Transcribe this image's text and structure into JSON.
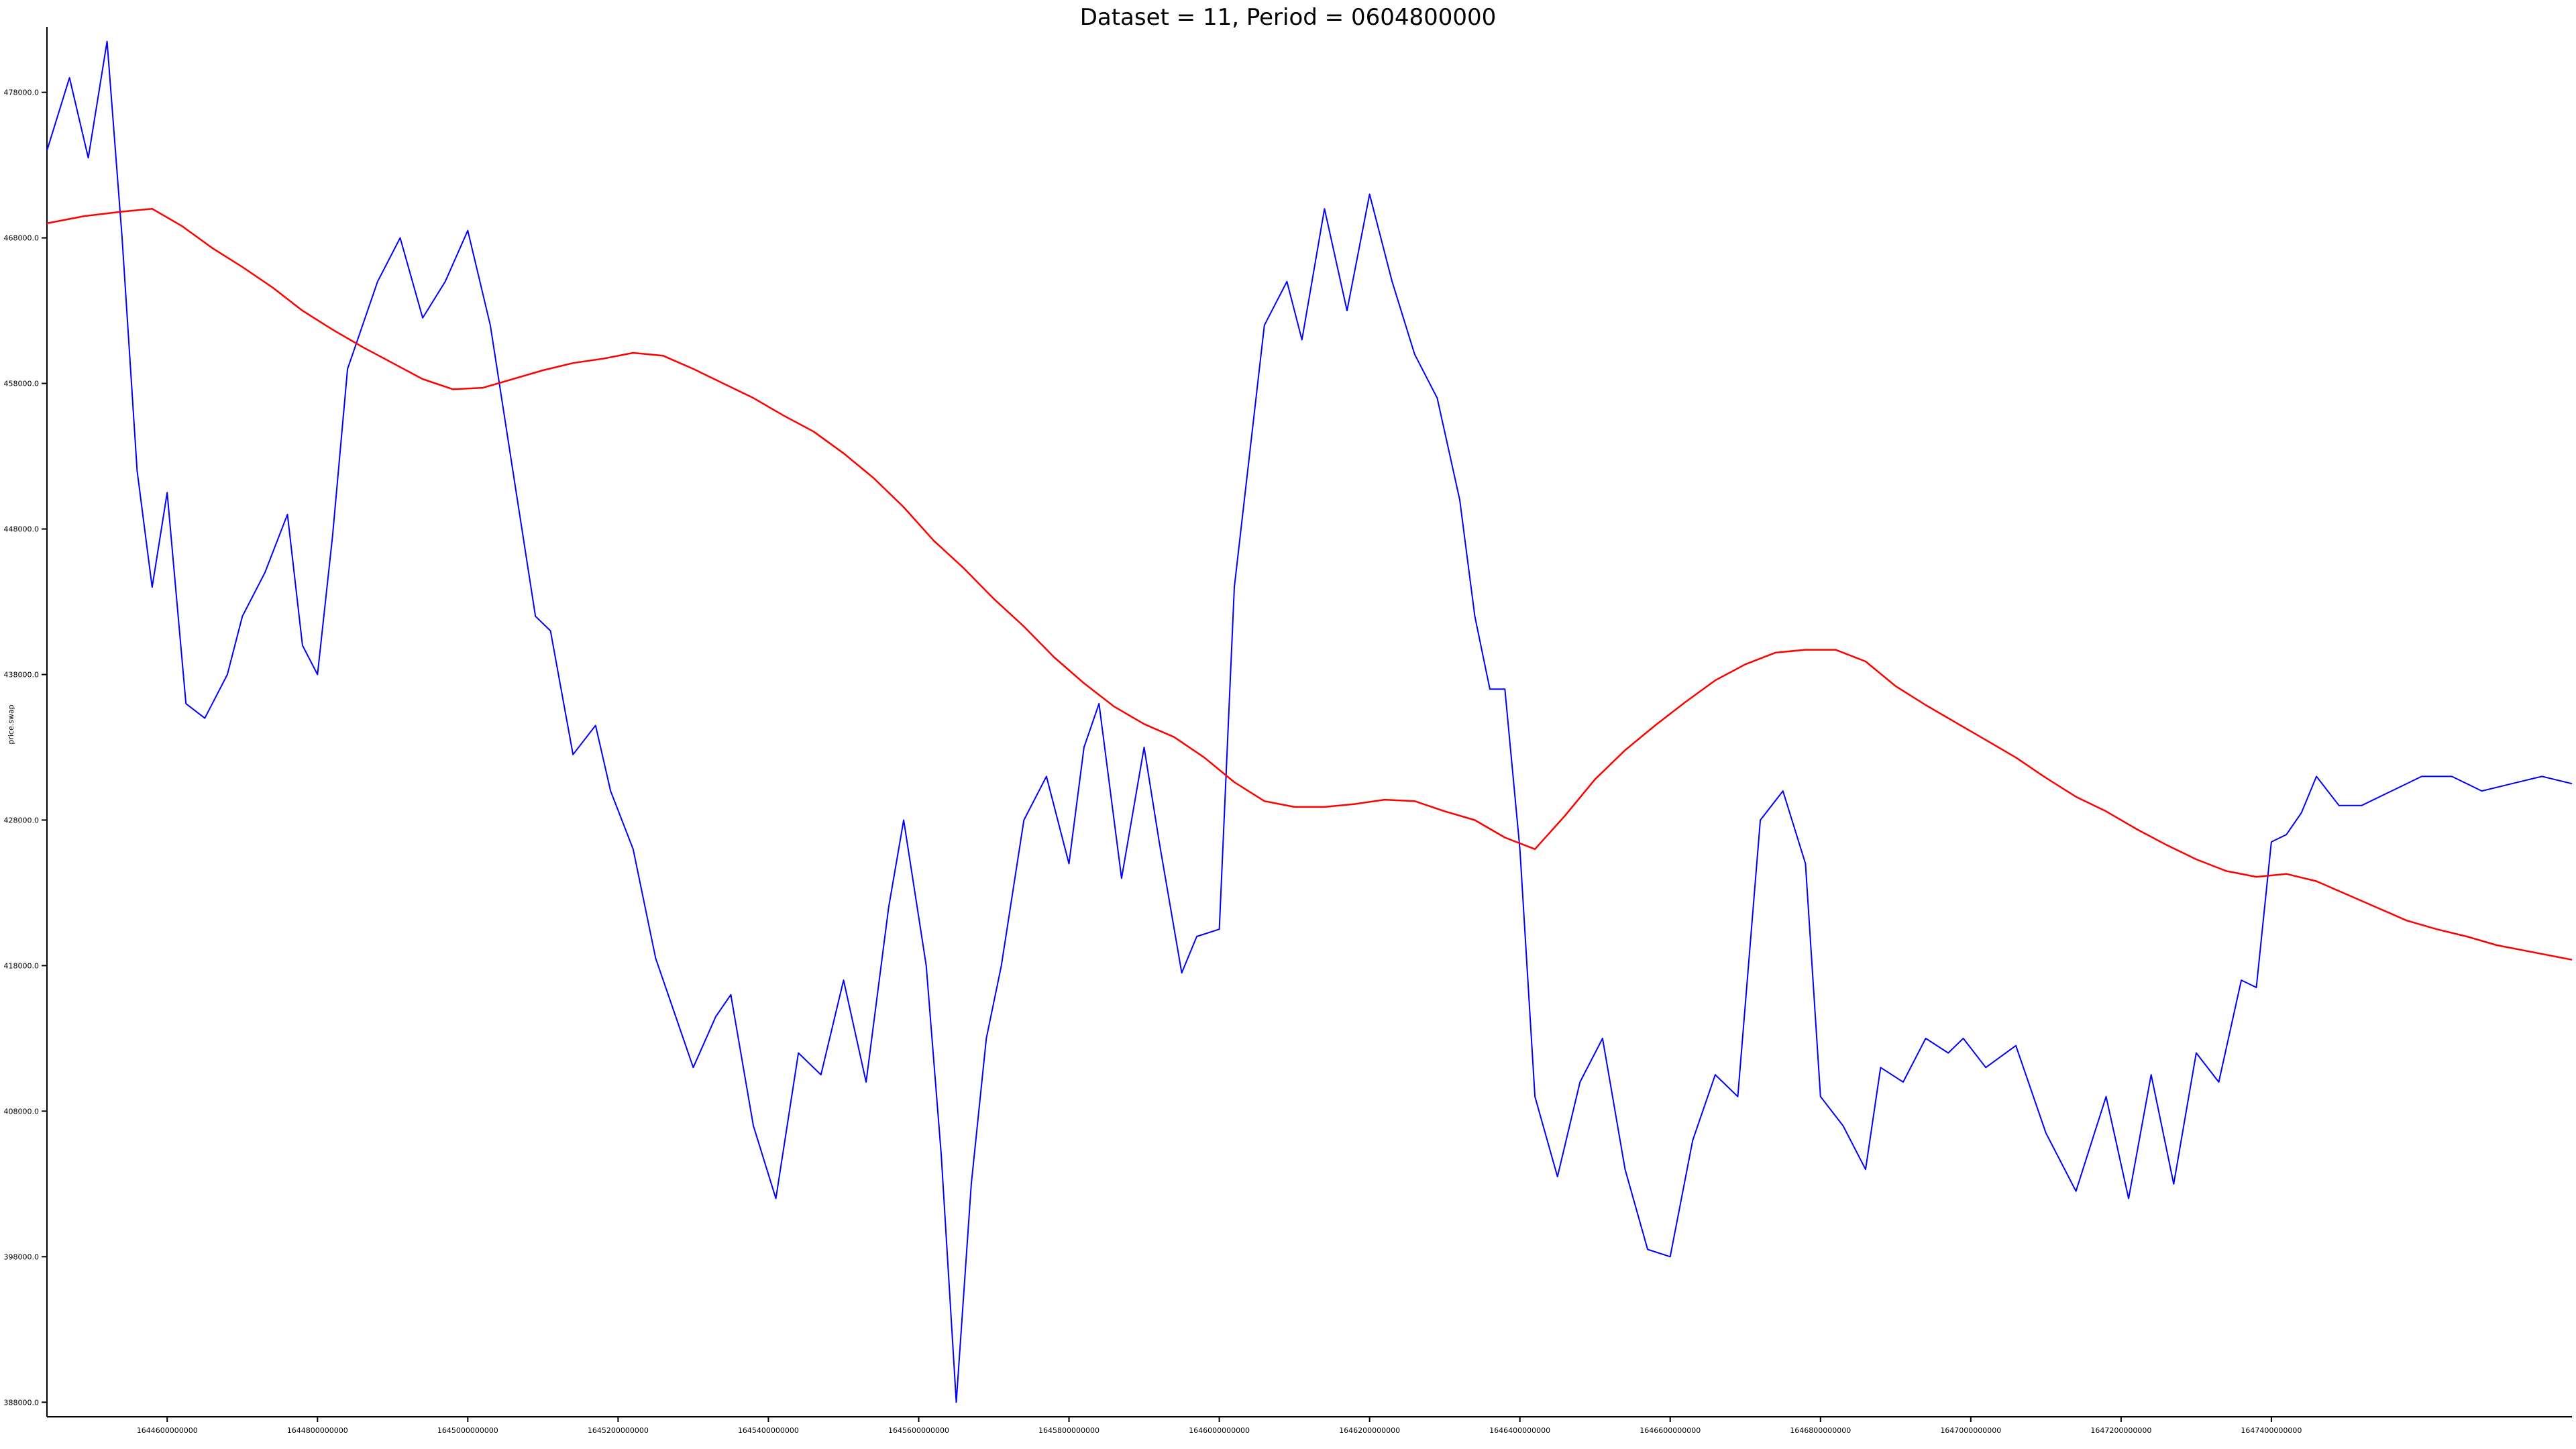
{
  "chart_data": {
    "type": "line",
    "title": "Dataset = 11, Period = 0604800000",
    "xlabel": "",
    "ylabel": "price.swap",
    "xlim": [
      1644440000000,
      1647800000000
    ],
    "ylim": [
      387000,
      482500
    ],
    "grid": false,
    "x_ticks": [
      {
        "value": 1644600000000,
        "label": "1644600000000"
      },
      {
        "value": 1644800000000,
        "label": "1644800000000"
      },
      {
        "value": 1645000000000,
        "label": "1645000000000"
      },
      {
        "value": 1645200000000,
        "label": "1645200000000"
      },
      {
        "value": 1645400000000,
        "label": "1645400000000"
      },
      {
        "value": 1645600000000,
        "label": "1645600000000"
      },
      {
        "value": 1645800000000,
        "label": "1645800000000"
      },
      {
        "value": 1646000000000,
        "label": "1646000000000"
      },
      {
        "value": 1646200000000,
        "label": "1646200000000"
      },
      {
        "value": 1646400000000,
        "label": "1646400000000"
      },
      {
        "value": 1646600000000,
        "label": "1646600000000"
      },
      {
        "value": 1646800000000,
        "label": "1646800000000"
      },
      {
        "value": 1647000000000,
        "label": "1647000000000"
      },
      {
        "value": 1647200000000,
        "label": "1647200000000"
      },
      {
        "value": 1647400000000,
        "label": "1647400000000"
      }
    ],
    "y_ticks": [
      {
        "value": 388000,
        "label": "388000.0"
      },
      {
        "value": 398000,
        "label": "398000.0"
      },
      {
        "value": 408000,
        "label": "408000.0"
      },
      {
        "value": 418000,
        "label": "418000.0"
      },
      {
        "value": 428000,
        "label": "428000.0"
      },
      {
        "value": 438000,
        "label": "438000.0"
      },
      {
        "value": 448000,
        "label": "448000.0"
      },
      {
        "value": 458000,
        "label": "458000.0"
      },
      {
        "value": 468000,
        "label": "468000.0"
      },
      {
        "value": 478000,
        "label": "478000.0"
      }
    ],
    "series": [
      {
        "color": "#0000ff",
        "x": [
          1644440000000,
          1644470000000,
          1644495000000,
          1644520000000,
          1644540000000,
          1644560000000,
          1644580000000,
          1644600000000,
          1644625000000,
          1644650000000,
          1644680000000,
          1644700000000,
          1644730000000,
          1644760000000,
          1644780000000,
          1644800000000,
          1644820000000,
          1644840000000,
          1644880000000,
          1644910000000,
          1644940000000,
          1644970000000,
          1645000000000,
          1645030000000,
          1645060000000,
          1645090000000,
          1645110000000,
          1645140000000,
          1645170000000,
          1645190000000,
          1645220000000,
          1645250000000,
          1645280000000,
          1645300000000,
          1645330000000,
          1645350000000,
          1645380000000,
          1645410000000,
          1645440000000,
          1645470000000,
          1645500000000,
          1645530000000,
          1645560000000,
          1645580000000,
          1645610000000,
          1645630000000,
          1645650000000,
          1645670000000,
          1645690000000,
          1645710000000,
          1645740000000,
          1645770000000,
          1645800000000,
          1645820000000,
          1645840000000,
          1645870000000,
          1645900000000,
          1645920000000,
          1645950000000,
          1645970000000,
          1646000000000,
          1646020000000,
          1646040000000,
          1646060000000,
          1646090000000,
          1646110000000,
          1646140000000,
          1646170000000,
          1646200000000,
          1646230000000,
          1646260000000,
          1646290000000,
          1646320000000,
          1646340000000,
          1646360000000,
          1646380000000,
          1646400000000,
          1646420000000,
          1646450000000,
          1646480000000,
          1646510000000,
          1646540000000,
          1646570000000,
          1646600000000,
          1646630000000,
          1646660000000,
          1646690000000,
          1646720000000,
          1646750000000,
          1646780000000,
          1646800000000,
          1646830000000,
          1646860000000,
          1646880000000,
          1646910000000,
          1646940000000,
          1646970000000,
          1646990000000,
          1647020000000,
          1647060000000,
          1647100000000,
          1647140000000,
          1647180000000,
          1647210000000,
          1647240000000,
          1647270000000,
          1647300000000,
          1647330000000,
          1647360000000,
          1647380000000,
          1647400000000,
          1647420000000,
          1647440000000,
          1647460000000,
          1647490000000,
          1647520000000,
          1647560000000,
          1647600000000,
          1647640000000,
          1647680000000,
          1647720000000,
          1647760000000,
          1647800000000
        ],
        "y": [
          474000,
          479000,
          473500,
          481500,
          468000,
          452000,
          444000,
          450500,
          436000,
          435000,
          438000,
          442000,
          445000,
          449000,
          440000,
          438000,
          447500,
          459000,
          465000,
          468000,
          462500,
          465000,
          468500,
          462000,
          452000,
          442000,
          441000,
          432500,
          434500,
          430000,
          426000,
          418500,
          414000,
          411000,
          414500,
          416000,
          407000,
          402000,
          412000,
          410500,
          417000,
          410000,
          422000,
          428000,
          418000,
          405000,
          388000,
          403000,
          413000,
          418000,
          428000,
          431000,
          425000,
          433000,
          436000,
          424000,
          433000,
          426500,
          417500,
          420000,
          420500,
          444000,
          453000,
          462000,
          465000,
          461000,
          470000,
          463000,
          471000,
          465000,
          460000,
          457000,
          450000,
          442000,
          437000,
          437000,
          426000,
          409000,
          403500,
          410000,
          413000,
          404000,
          398500,
          398000,
          406000,
          410500,
          409000,
          428000,
          430000,
          425000,
          409000,
          407000,
          404000,
          411000,
          410000,
          413000,
          412000,
          413000,
          411000,
          412500,
          406500,
          402500,
          409000,
          402000,
          410500,
          403000,
          412000,
          410000,
          417000,
          416500,
          426500,
          427000,
          428500,
          431000,
          429000,
          429000,
          430000,
          431000,
          431000,
          430000,
          430500,
          431000,
          430500
        ]
      },
      {
        "color": "#ff0000",
        "x": [
          1644440000000,
          1644490000000,
          1644540000000,
          1644580000000,
          1644620000000,
          1644660000000,
          1644700000000,
          1644740000000,
          1644780000000,
          1644820000000,
          1644860000000,
          1644900000000,
          1644940000000,
          1644980000000,
          1645020000000,
          1645060000000,
          1645100000000,
          1645140000000,
          1645180000000,
          1645220000000,
          1645260000000,
          1645300000000,
          1645340000000,
          1645380000000,
          1645420000000,
          1645460000000,
          1645500000000,
          1645540000000,
          1645580000000,
          1645620000000,
          1645660000000,
          1645700000000,
          1645740000000,
          1645780000000,
          1645820000000,
          1645860000000,
          1645900000000,
          1645940000000,
          1645980000000,
          1646020000000,
          1646060000000,
          1646100000000,
          1646140000000,
          1646180000000,
          1646220000000,
          1646260000000,
          1646300000000,
          1646340000000,
          1646380000000,
          1646420000000,
          1646460000000,
          1646500000000,
          1646540000000,
          1646580000000,
          1646620000000,
          1646660000000,
          1646700000000,
          1646740000000,
          1646780000000,
          1646820000000,
          1646860000000,
          1646900000000,
          1646940000000,
          1646980000000,
          1647020000000,
          1647060000000,
          1647100000000,
          1647140000000,
          1647180000000,
          1647220000000,
          1647260000000,
          1647300000000,
          1647340000000,
          1647380000000,
          1647420000000,
          1647460000000,
          1647500000000,
          1647540000000,
          1647580000000,
          1647620000000,
          1647660000000,
          1647700000000,
          1647740000000,
          1647800000000
        ],
        "y": [
          469000,
          469500,
          469800,
          470000,
          468800,
          467300,
          466000,
          464600,
          463000,
          461700,
          460500,
          459400,
          458300,
          457600,
          457700,
          458300,
          458900,
          459400,
          459700,
          460100,
          459900,
          459000,
          458000,
          457000,
          455800,
          454700,
          453200,
          451500,
          449500,
          447200,
          445300,
          443200,
          441300,
          439200,
          437400,
          435800,
          434600,
          433700,
          432300,
          430600,
          429300,
          428900,
          428900,
          429100,
          429400,
          429300,
          428600,
          428000,
          426800,
          426000,
          428300,
          430800,
          432800,
          434500,
          436100,
          437600,
          438700,
          439500,
          439700,
          439700,
          438900,
          437200,
          435900,
          434700,
          433500,
          432300,
          430900,
          429600,
          428600,
          427400,
          426300,
          425300,
          424500,
          424100,
          424300,
          423800,
          422900,
          422000,
          421100,
          420500,
          420000,
          419400,
          419000,
          418400
        ]
      }
    ]
  }
}
